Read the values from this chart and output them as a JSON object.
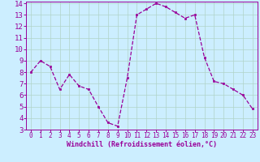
{
  "hours": [
    0,
    1,
    2,
    3,
    4,
    5,
    6,
    7,
    8,
    9,
    10,
    11,
    12,
    13,
    14,
    15,
    16,
    17,
    18,
    19,
    20,
    21,
    22,
    23
  ],
  "values": [
    8.0,
    9.0,
    8.5,
    6.5,
    7.8,
    6.8,
    6.5,
    5.0,
    3.6,
    3.3,
    7.5,
    13.0,
    13.5,
    14.0,
    13.7,
    13.2,
    12.7,
    13.0,
    9.3,
    7.2,
    7.0,
    6.5,
    6.0,
    4.8
  ],
  "line_color": "#990099",
  "marker": "s",
  "marker_size": 2,
  "bg_color": "#cceeff",
  "grid_color": "#b0d4c8",
  "xlabel": "Windchill (Refroidissement éolien,°C)",
  "xlabel_color": "#990099",
  "tick_color": "#990099",
  "ylim": [
    3,
    14
  ],
  "xlim": [
    -0.5,
    23.5
  ],
  "yticks": [
    3,
    4,
    5,
    6,
    7,
    8,
    9,
    10,
    11,
    12,
    13,
    14
  ],
  "xticks": [
    0,
    1,
    2,
    3,
    4,
    5,
    6,
    7,
    8,
    9,
    10,
    11,
    12,
    13,
    14,
    15,
    16,
    17,
    18,
    19,
    20,
    21,
    22,
    23
  ],
  "ytick_fontsize": 6.5,
  "xtick_fontsize": 5.5,
  "xlabel_fontsize": 6.0
}
